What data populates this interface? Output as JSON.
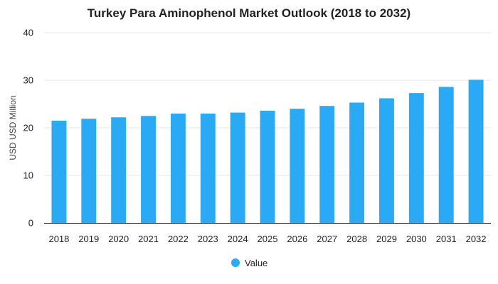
{
  "chart_data": {
    "type": "bar",
    "title": "Turkey Para Aminophenol Market Outlook (2018 to 2032)",
    "xlabel": "",
    "ylabel": "USD USD Million",
    "categories": [
      "2018",
      "2019",
      "2020",
      "2021",
      "2022",
      "2023",
      "2024",
      "2025",
      "2026",
      "2027",
      "2028",
      "2029",
      "2030",
      "2031",
      "2032"
    ],
    "series": [
      {
        "name": "Value",
        "color": "#2aaaf5",
        "values": [
          21.5,
          21.9,
          22.2,
          22.5,
          23.0,
          23.0,
          23.2,
          23.6,
          24.0,
          24.6,
          25.3,
          26.2,
          27.3,
          28.6,
          30.1
        ]
      }
    ],
    "ylim": [
      0,
      40
    ],
    "yticks": [
      "0",
      "10",
      "20",
      "30",
      "40"
    ],
    "grid": true,
    "legend": "bottom"
  }
}
